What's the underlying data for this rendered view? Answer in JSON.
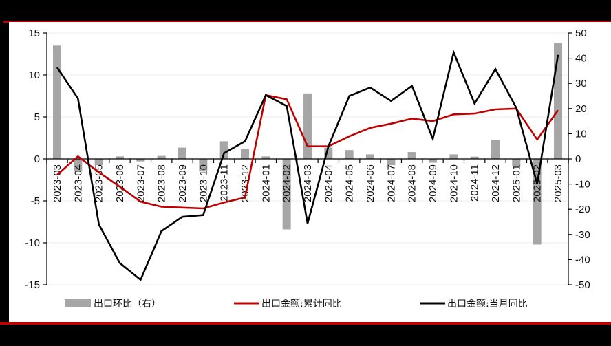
{
  "chart_data": {
    "type": "bar+line",
    "title": "",
    "categories": [
      "2023-03",
      "2023-04",
      "2023-05",
      "2023-06",
      "2023-07",
      "2023-08",
      "2023-09",
      "2023-10",
      "2023-11",
      "2023-12",
      "2024-01",
      "2024-02",
      "2024-03",
      "2024-04",
      "2024-05",
      "2024-06",
      "2024-07",
      "2024-08",
      "2024-09",
      "2024-10",
      "2024-11",
      "2024-12",
      "2025-01",
      "2025-02",
      "2025-03"
    ],
    "series": [
      {
        "name": "出口环比（右）",
        "type": "bar",
        "axis": "right",
        "color": "#a6a6a6",
        "values": [
          45,
          -5,
          -2.5,
          1,
          -1,
          1.2,
          4.5,
          -5,
          7,
          4,
          1,
          -28,
          26,
          4.5,
          3.5,
          1.8,
          -2.5,
          2.7,
          -1.5,
          1.8,
          0.9,
          7.6,
          -3,
          -34,
          46
        ]
      },
      {
        "name": "出口金额:累计同比",
        "type": "line",
        "axis": "left",
        "color": "#c00000",
        "values": [
          -1.9,
          0.3,
          -1.6,
          -3.3,
          -5.1,
          -5.7,
          -5.8,
          -5.9,
          -5.2,
          -4.6,
          7.6,
          7.1,
          1.5,
          1.5,
          2.7,
          3.7,
          4.2,
          4.8,
          4.5,
          5.3,
          5.4,
          5.9,
          6.0,
          2.3,
          5.8
        ]
      },
      {
        "name": "出口金额:当月同比",
        "type": "line",
        "axis": "left",
        "color": "#000000",
        "values": [
          10.9,
          7.2,
          -7.8,
          -12.4,
          -14.4,
          -8.6,
          -6.9,
          -6.7,
          0.7,
          2.1,
          7.6,
          6.3,
          -7.7,
          1.5,
          7.5,
          8.5,
          6.9,
          8.7,
          2.4,
          12.7,
          6.6,
          10.7,
          6.1,
          -3.0,
          12.4
        ]
      }
    ],
    "left_axis": {
      "ylim": [
        -15,
        15
      ],
      "ticks": [
        "15",
        "10",
        "5",
        "0",
        "-5",
        "-10",
        "-15"
      ]
    },
    "right_axis": {
      "ylim": [
        -50,
        50
      ],
      "ticks": [
        "50",
        "40",
        "30",
        "20",
        "10",
        "0",
        "-10",
        "-20",
        "-30",
        "-40",
        "-50"
      ]
    },
    "grid": true,
    "legend_position": "bottom"
  },
  "legend": {
    "bar_label": "出口环比（右）",
    "cum_label": "出口金额:累计同比",
    "month_label": "出口金额:当月同比"
  }
}
